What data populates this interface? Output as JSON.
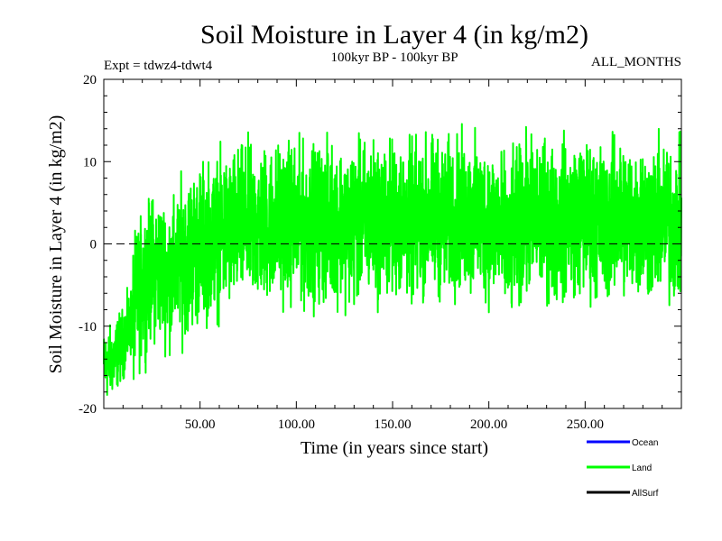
{
  "chart_data": {
    "type": "line",
    "title": "Soil Moisture in Layer 4 (in kg/m2)",
    "subtitle_left": "Expt = tdwz4-tdwt4",
    "subtitle_center": "100kyr BP - 100kyr BP",
    "subtitle_right": "ALL_MONTHS",
    "xlabel": "Time (in years since start)",
    "ylabel": "Soil Moisture in Layer 4 (in kg/m2)",
    "xlim": [
      0,
      300
    ],
    "ylim": [
      -20,
      20
    ],
    "xticks": [
      50,
      100,
      150,
      200,
      250
    ],
    "xtick_labels": [
      "50.00",
      "100.00",
      "150.00",
      "200.00",
      "250.00"
    ],
    "yticks": [
      -20,
      -10,
      0,
      10,
      20
    ],
    "ytick_labels": [
      "-20",
      "-10",
      "0",
      "10",
      "20"
    ],
    "zero_line": {
      "value": 0,
      "style": "dashed"
    },
    "series": [
      {
        "name": "Ocean",
        "color": "#0000ff",
        "values": []
      },
      {
        "name": "Land",
        "color": "#00ff00",
        "x": [
          0,
          5,
          10,
          15,
          20,
          25,
          30,
          35,
          40,
          45,
          50,
          55,
          60,
          65,
          70,
          75,
          80,
          85,
          90,
          95,
          100,
          105,
          110,
          115,
          120,
          125,
          130,
          135,
          140,
          145,
          150,
          155,
          160,
          165,
          170,
          175,
          180,
          185,
          190,
          195,
          200,
          205,
          210,
          215,
          220,
          225,
          230,
          235,
          240,
          245,
          250,
          255,
          260,
          265,
          270,
          275,
          280,
          285,
          290,
          295,
          300
        ],
        "values": [
          -15,
          -14,
          -12,
          -9,
          -5,
          -3,
          -3,
          -4,
          -2,
          -1,
          0,
          0.5,
          1,
          1.5,
          2,
          2.5,
          2,
          2.5,
          2.5,
          3,
          2.5,
          2,
          2.5,
          2.5,
          3,
          2.5,
          2,
          3,
          3,
          2.5,
          3,
          3,
          2.5,
          3,
          3.5,
          3,
          3,
          3.5,
          3,
          3,
          2.5,
          2.5,
          -0.5,
          2,
          3.5,
          3,
          3,
          2.5,
          3,
          3.5,
          3,
          3,
          2.5,
          3,
          3.5,
          3,
          3,
          2.5,
          3,
          2.5,
          2
        ]
      },
      {
        "name": "AllSurf",
        "color": "#000000",
        "values": []
      }
    ],
    "legend_position": "bottom-right"
  }
}
